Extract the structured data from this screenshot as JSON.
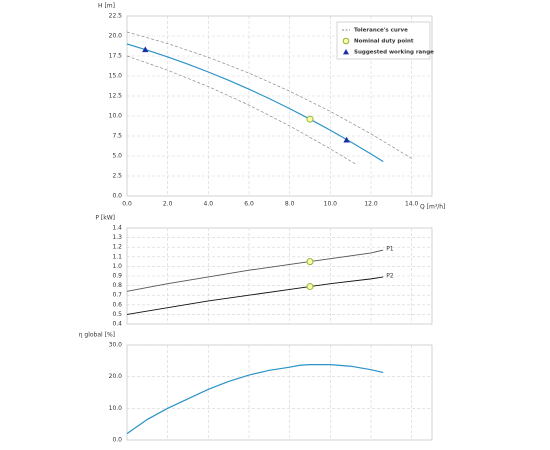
{
  "chart_data": [
    {
      "type": "line",
      "y_label": "H [m]",
      "x_label": "Q [m³/h]",
      "xlim": [
        0,
        15
      ],
      "xticks": [
        {
          "value": 0,
          "label": "0.0"
        },
        {
          "value": 2,
          "label": "2.0"
        },
        {
          "value": 4,
          "label": "4.0"
        },
        {
          "value": 6,
          "label": "6.0"
        },
        {
          "value": 8,
          "label": "8.0"
        },
        {
          "value": 10,
          "label": "10.0"
        },
        {
          "value": 12,
          "label": "12.0"
        },
        {
          "value": 14,
          "label": "14.0"
        }
      ],
      "ylim": [
        0,
        22.5
      ],
      "yticks": [
        {
          "value": 0,
          "label": "0.0"
        },
        2.5,
        {
          "value": 5,
          "label": "5.0"
        },
        7.5,
        {
          "value": 10,
          "label": "10.0"
        },
        12.5,
        {
          "value": 15,
          "label": "15.0"
        },
        17.5,
        {
          "value": 20,
          "label": "20.0"
        },
        22.5
      ],
      "grid": true,
      "legend": "upper right",
      "series": [
        {
          "name": "Tolerance's curve",
          "color": "#8a8a8a",
          "dashed": true,
          "x": [
            0,
            2,
            4,
            6,
            8,
            10,
            12,
            14
          ],
          "values": [
            20.5,
            19.06,
            17.34,
            15.36,
            13.1,
            10.57,
            7.77,
            4.7
          ]
        },
        {
          "color": "#8a8a8a",
          "dashed": true,
          "x": [
            0,
            2,
            4,
            6,
            8,
            10,
            11.3
          ],
          "values": [
            17.5,
            15.72,
            13.68,
            11.36,
            8.76,
            5.9,
            3.9
          ]
        },
        {
          "color": "#2b93c9",
          "x": [
            0,
            1,
            2,
            3,
            4,
            5,
            6,
            7,
            8,
            9,
            10,
            11,
            12,
            12.6
          ],
          "values": [
            19.0,
            18.23,
            17.39,
            16.48,
            15.5,
            14.46,
            13.35,
            12.17,
            10.92,
            9.6,
            8.22,
            6.77,
            5.25,
            4.3
          ]
        },
        {
          "name": "Nominal duty point",
          "color": "#8db43c",
          "marker": "circle",
          "fill": "#ffffa8",
          "x": [
            9
          ],
          "values": [
            9.6
          ]
        },
        {
          "name": "Suggested working range",
          "color": "#1c2fa3",
          "marker": "triangle",
          "x": [
            0.9,
            10.8
          ],
          "values": [
            18.3,
            7.0
          ]
        }
      ]
    },
    {
      "type": "line",
      "y_label": "P [kW]",
      "xlim": [
        0,
        15
      ],
      "xticks": [
        0,
        2,
        4,
        6,
        8,
        10,
        12,
        14
      ],
      "xtick_labels": false,
      "ylim": [
        0.4,
        1.4
      ],
      "yticks": [
        0.4,
        0.5,
        0.6,
        0.7,
        0.8,
        0.9,
        {
          "value": 1.0,
          "label": "1.0"
        },
        1.1,
        1.2,
        1.3,
        1.4
      ],
      "grid": true,
      "series": [
        {
          "name": "P1",
          "color": "#555555",
          "end_label": true,
          "x": [
            0,
            2,
            4,
            6,
            8,
            10,
            12,
            12.6
          ],
          "values": [
            0.74,
            0.82,
            0.89,
            0.96,
            1.02,
            1.08,
            1.14,
            1.17
          ]
        },
        {
          "name": "P2",
          "color": "#111111",
          "end_label": true,
          "x": [
            0,
            2,
            4,
            6,
            8,
            10,
            12,
            12.6
          ],
          "values": [
            0.5,
            0.57,
            0.64,
            0.7,
            0.76,
            0.82,
            0.87,
            0.89
          ]
        },
        {
          "color": "#8db43c",
          "marker": "circle",
          "fill": "#ffffa8",
          "x": [
            9,
            9
          ],
          "values": [
            1.05,
            0.79
          ]
        }
      ]
    },
    {
      "type": "line",
      "y_label": "η global [%]",
      "xlim": [
        0,
        15
      ],
      "xticks": [
        0,
        2,
        4,
        6,
        8,
        10,
        12,
        14
      ],
      "xtick_labels": false,
      "ylim": [
        0,
        30
      ],
      "yticks": [
        {
          "value": 0,
          "label": "0.0"
        },
        {
          "value": 10,
          "label": "10.0"
        },
        {
          "value": 20,
          "label": "20.0"
        },
        {
          "value": 30,
          "label": "30.0"
        }
      ],
      "grid": true,
      "series": [
        {
          "color": "#2b93c9",
          "x": [
            0,
            1,
            2,
            3,
            4,
            5,
            6,
            7,
            8,
            8.5,
            9,
            10,
            11,
            12,
            12.6
          ],
          "values": [
            2,
            6.5,
            10,
            13,
            16,
            18.5,
            20.5,
            22,
            23,
            23.6,
            23.8,
            23.8,
            23.3,
            22.2,
            21.3
          ]
        }
      ]
    }
  ]
}
